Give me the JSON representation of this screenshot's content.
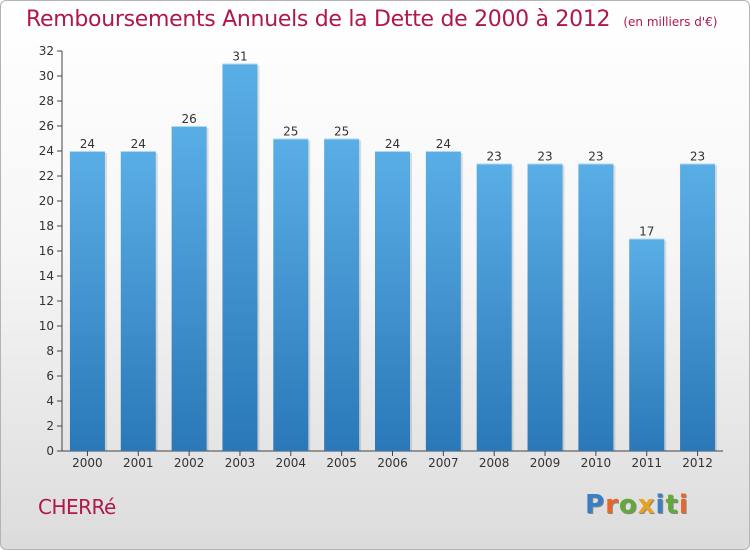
{
  "header": {
    "title": "Remboursements Annuels de la Dette de 2000 à 2012",
    "unit": "(en milliers d'€)"
  },
  "footer": {
    "commune": "CHERRé",
    "logo_letters": [
      {
        "ch": "P",
        "color": "#3a7fc4"
      },
      {
        "ch": "r",
        "color": "#e8662a"
      },
      {
        "ch": "o",
        "color": "#62a83a"
      },
      {
        "ch": "x",
        "color": "#e8a21f"
      },
      {
        "ch": "i",
        "color": "#3a7fc4"
      },
      {
        "ch": "t",
        "color": "#62a83a"
      },
      {
        "ch": "i",
        "color": "#e8662a"
      }
    ]
  },
  "chart_data": {
    "type": "bar",
    "title": "Remboursements Annuels de la Dette de 2000 à 2012",
    "categories": [
      "2000",
      "2001",
      "2002",
      "2003",
      "2004",
      "2005",
      "2006",
      "2007",
      "2008",
      "2009",
      "2010",
      "2011",
      "2012"
    ],
    "values": [
      24,
      24,
      26,
      31,
      25,
      25,
      24,
      24,
      23,
      23,
      23,
      17,
      23
    ],
    "ylim": [
      0,
      32
    ],
    "yticks": [
      0,
      2,
      4,
      6,
      8,
      10,
      12,
      14,
      16,
      18,
      20,
      22,
      24,
      26,
      28,
      30,
      32
    ],
    "grid": false,
    "xlabel": "",
    "ylabel": "",
    "bar_color_top": "#5aaee6",
    "bar_color_bottom": "#2a78b8",
    "title_color": "#b0184a"
  }
}
